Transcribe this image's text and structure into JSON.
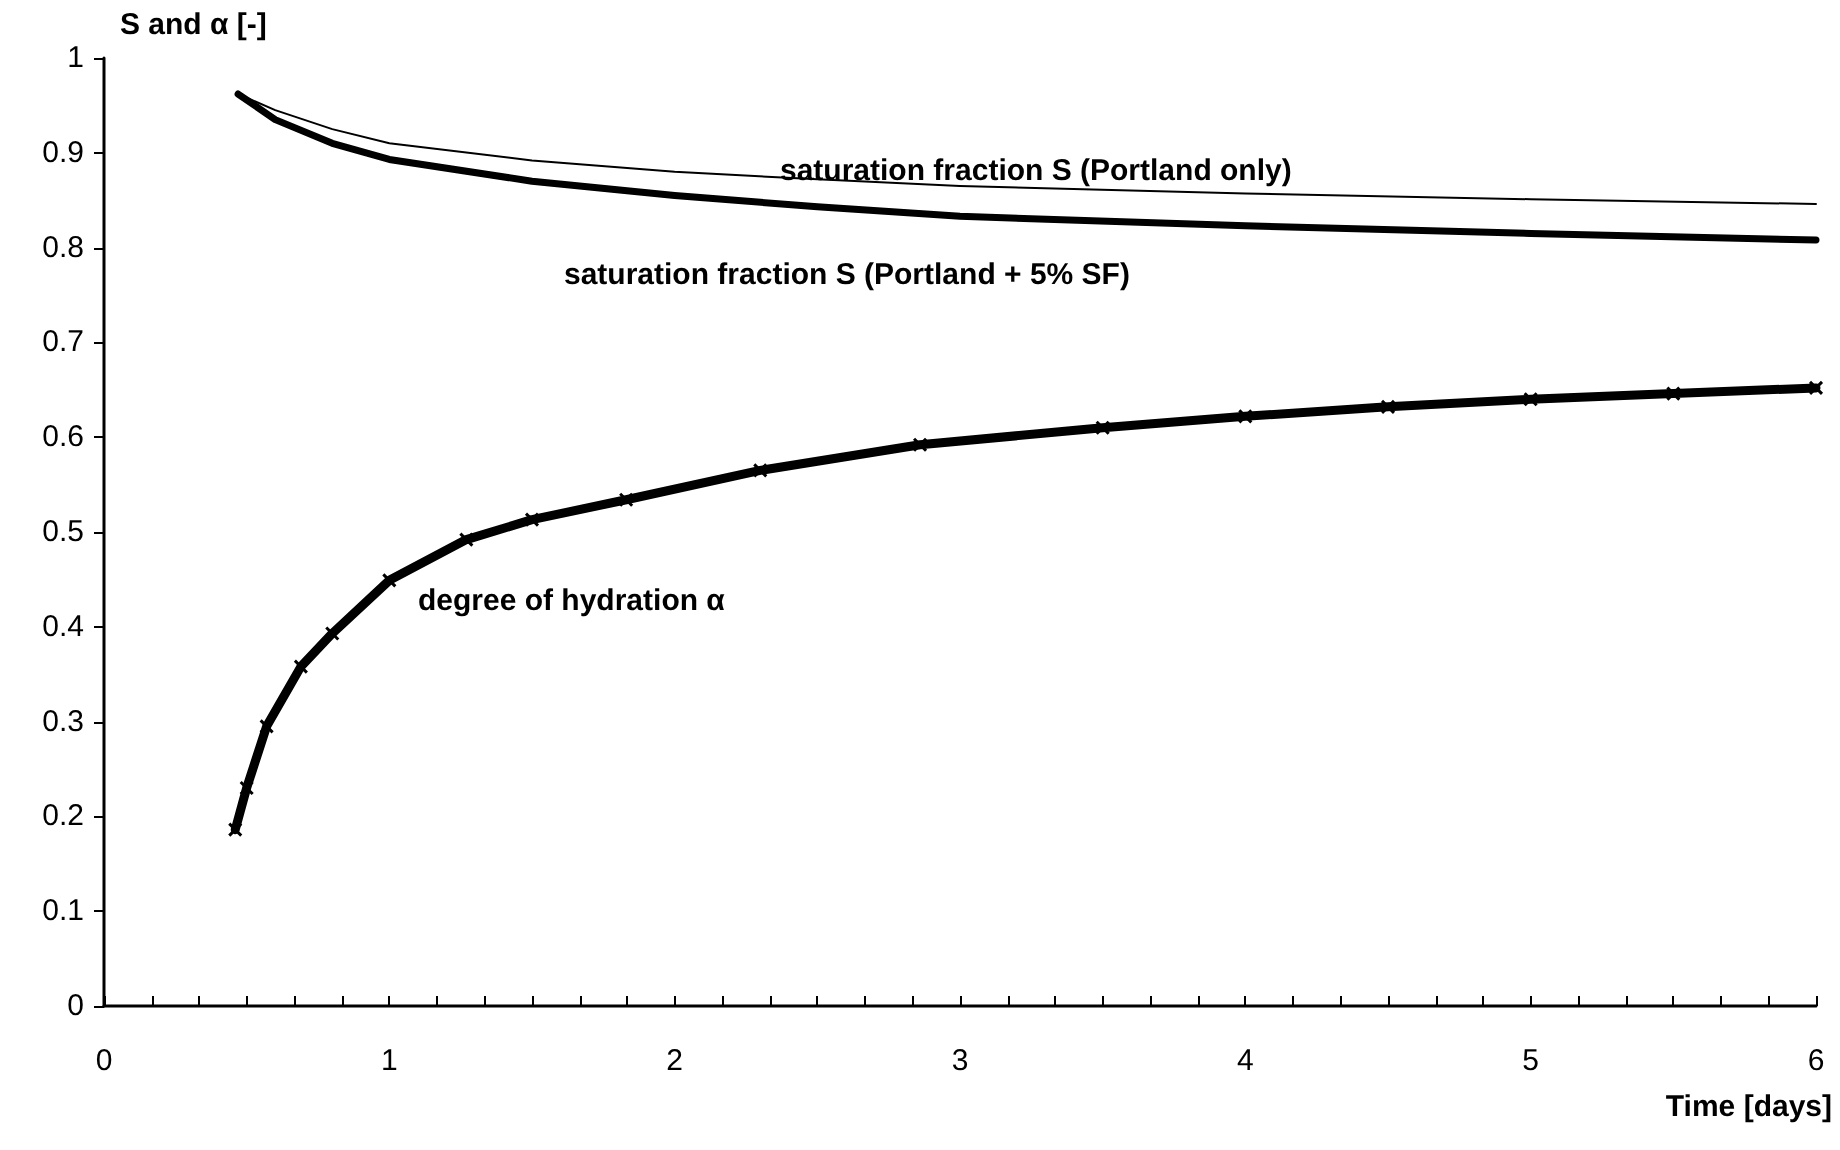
{
  "chart_data": {
    "type": "line",
    "xlabel": "Time [days]",
    "ylabel": "S and α [-]",
    "xlim": [
      0,
      6
    ],
    "ylim": [
      0,
      1
    ],
    "xticks": [
      0,
      {
        "value": 0.167,
        "label": null
      },
      {
        "value": 0.333,
        "label": null
      },
      {
        "value": 0.5,
        "label": null
      },
      {
        "value": 0.667,
        "label": null
      },
      {
        "value": 0.833,
        "label": null
      },
      1,
      {
        "value": 1.167,
        "label": null
      },
      {
        "value": 1.333,
        "label": null
      },
      {
        "value": 1.5,
        "label": null
      },
      {
        "value": 1.667,
        "label": null
      },
      {
        "value": 1.833,
        "label": null
      },
      2,
      {
        "value": 2.167,
        "label": null
      },
      {
        "value": 2.333,
        "label": null
      },
      {
        "value": 2.5,
        "label": null
      },
      {
        "value": 2.667,
        "label": null
      },
      {
        "value": 2.833,
        "label": null
      },
      3,
      {
        "value": 3.167,
        "label": null
      },
      {
        "value": 3.333,
        "label": null
      },
      {
        "value": 3.5,
        "label": null
      },
      {
        "value": 3.667,
        "label": null
      },
      {
        "value": 3.833,
        "label": null
      },
      4,
      {
        "value": 4.167,
        "label": null
      },
      {
        "value": 4.333,
        "label": null
      },
      {
        "value": 4.5,
        "label": null
      },
      {
        "value": 4.667,
        "label": null
      },
      {
        "value": 4.833,
        "label": null
      },
      5,
      {
        "value": 5.167,
        "label": null
      },
      {
        "value": 5.333,
        "label": null
      },
      {
        "value": 5.5,
        "label": null
      },
      {
        "value": 5.667,
        "label": null
      },
      {
        "value": 5.833,
        "label": null
      },
      6
    ],
    "yticks": [
      0,
      0.1,
      0.2,
      0.3,
      0.4,
      0.5,
      0.6,
      0.7,
      0.8,
      0.9,
      1
    ],
    "grid": false,
    "series": [
      {
        "color": "#000000",
        "marker": "none",
        "x": [
          0.47,
          0.6,
          0.8,
          1.0,
          1.5,
          2,
          2.5,
          3,
          4,
          5,
          6
        ],
        "values": [
          0.962,
          0.945,
          0.925,
          0.91,
          0.892,
          0.88,
          0.872,
          0.865,
          0.857,
          0.851,
          0.846
        ]
      },
      {
        "color": "#000000",
        "marker": "none",
        "x": [
          0.47,
          0.6,
          0.8,
          1.0,
          1.5,
          2,
          2.5,
          3,
          4,
          5,
          6
        ],
        "values": [
          0.962,
          0.935,
          0.91,
          0.893,
          0.87,
          0.855,
          0.843,
          0.833,
          0.823,
          0.815,
          0.808
        ]
      },
      {
        "color": "#000000",
        "marker": "cross",
        "x": [
          0.46,
          0.5,
          0.57,
          0.69,
          0.8,
          1.0,
          1.27,
          1.5,
          1.83,
          2.3,
          2.86,
          3.5,
          4,
          4.5,
          5,
          5.5,
          6
        ],
        "values": [
          0.186,
          0.23,
          0.295,
          0.358,
          0.393,
          0.449,
          0.492,
          0.513,
          0.534,
          0.565,
          0.592,
          0.61,
          0.622,
          0.632,
          0.64,
          0.646,
          0.652
        ]
      }
    ],
    "annotations": [
      "saturation fraction S (Portland only)",
      "saturation fraction S (Portland + 5% SF)",
      "degree of hydration α"
    ]
  }
}
